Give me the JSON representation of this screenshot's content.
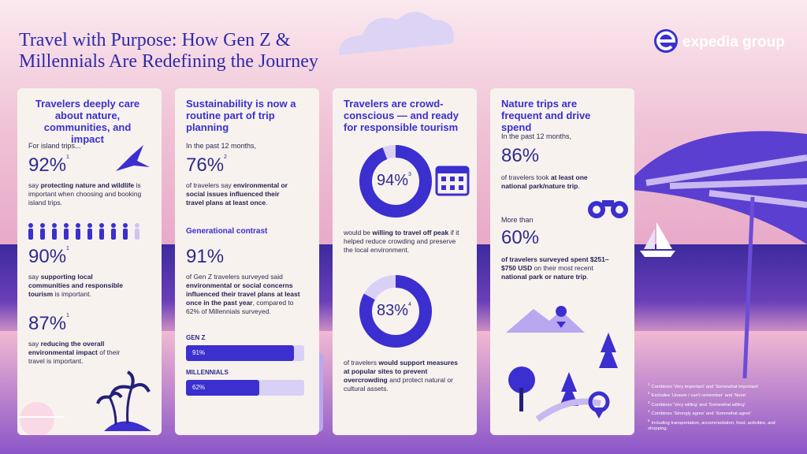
{
  "header": {
    "title": [
      "Travel with Purpose: How Gen Z &",
      "Millennials Are Redefining the Journey"
    ],
    "brand": "expedia group"
  },
  "cards": [
    {
      "heading": "Travelers deeply care about nature, communities, and impact",
      "intro": "For island trips...",
      "stats": [
        {
          "value": "92%",
          "note": "1",
          "text": [
            "say ",
            {
              "text": "protecting nature and wildlife",
              "bold": true
            },
            " is important when choosing and booking island trips."
          ]
        },
        {
          "value": "90%",
          "note": "1",
          "text": [
            "say ",
            {
              "text": "supporting local communities and responsible tourism",
              "bold": true
            },
            " is important."
          ]
        },
        {
          "value": "87%",
          "note": "1",
          "text": [
            "say ",
            {
              "text": "reducing the overall environmental impact",
              "bold": true
            },
            " of their travel is important."
          ]
        }
      ]
    },
    {
      "heading": "Sustainability is now a routine part of trip planning",
      "intro": "In the past 12 months,",
      "stats": [
        {
          "value": "76%",
          "note": "2",
          "text": [
            "of travelers say ",
            {
              "text": "environmental or social issues influenced their travel plans at least once",
              "bold": true
            },
            "."
          ]
        },
        {
          "value": "91%",
          "text": [
            "of Gen Z travelers surveyed said ",
            {
              "text": "environmental or social concerns influenced their travel plans at least once in the past year",
              "bold": true
            },
            ", compared to 62% of Millennials surveyed."
          ]
        }
      ],
      "subheading": "Generational contrast",
      "bars": {
        "categories": [
          "GEN Z",
          "MILLENNIALS"
        ],
        "values": [
          91,
          62
        ],
        "value_labels": [
          "91%",
          "62%"
        ],
        "xlim": [
          0,
          100
        ]
      }
    },
    {
      "heading": "Travelers are crowd-conscious — and ready for responsible tourism",
      "donuts": [
        {
          "value": 94,
          "value_label": "94%",
          "note": "3",
          "text": [
            "would be ",
            {
              "text": "willing to travel off peak",
              "bold": true
            },
            " if it helped reduce crowding and preserve the local environment."
          ]
        },
        {
          "value": 83,
          "value_label": "83%",
          "note": "4",
          "text": [
            "of travelers ",
            {
              "text": "would support measures at popular sites to prevent overcrowding",
              "bold": true
            },
            " and protect natural or cultural assets."
          ]
        }
      ]
    },
    {
      "heading": "Nature trips are frequent and drive spend",
      "intro": "In the past 12 months,",
      "intro2": "More than",
      "stats": [
        {
          "value": "86%",
          "text": [
            "of travelers took ",
            {
              "text": "at least one national park/nature trip",
              "bold": true
            },
            "."
          ]
        },
        {
          "value": "60%",
          "note": "5",
          "text": [
            {
              "text": "of travelers surveyed spent $251–$750 USD",
              "bold": true
            },
            " on their most recent ",
            {
              "text": "national park or nature trip",
              "bold": true
            },
            "."
          ]
        }
      ]
    }
  ],
  "footnotes": [
    {
      "mark": "1",
      "text": "Combines ‘Very important’ and ‘Somewhat important’"
    },
    {
      "mark": "2",
      "text": "Excludes ‘Unsure / can’t remember’ and ‘None’"
    },
    {
      "mark": "3",
      "text": "Combines ‘Very willing’ and ‘Somewhat willing’"
    },
    {
      "mark": "4",
      "text": "Combines ‘Strongly agree’ and ‘Somewhat agree’"
    },
    {
      "mark": "5",
      "text": "Including transportation, accommodation, food, activities, and shopping."
    }
  ]
}
